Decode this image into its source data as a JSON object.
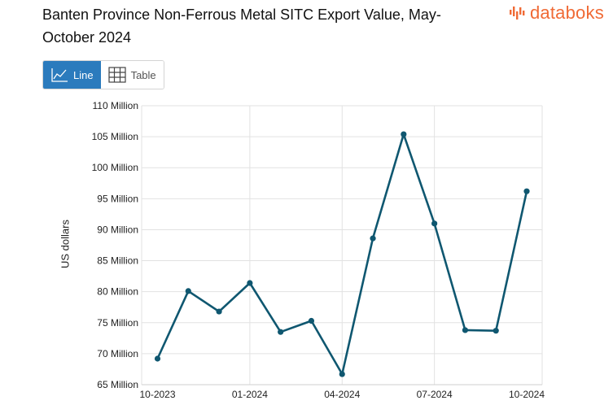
{
  "title": "Banten Province Non-Ferrous Metal SITC Export Value, May-October 2024",
  "logo": {
    "text": "databoks",
    "color": "#f06a35"
  },
  "view_toggle": {
    "line_label": "Line",
    "table_label": "Table",
    "active": "Line",
    "line_icon": "line-chart-icon",
    "table_icon": "table-grid-icon"
  },
  "chart_data": {
    "type": "line",
    "ylabel": "US dollars",
    "ylim": [
      65,
      110
    ],
    "y_ticks": [
      "65 Million",
      "70 Million",
      "75 Million",
      "80 Million",
      "85 Million",
      "90 Million",
      "95 Million",
      "100 Million",
      "105 Million",
      "110 Million"
    ],
    "y_tick_values": [
      65,
      70,
      75,
      80,
      85,
      90,
      95,
      100,
      105,
      110
    ],
    "x_tick_labels": [
      "10-2023",
      "01-2024",
      "04-2024",
      "07-2024",
      "10-2024"
    ],
    "x": [
      "10-2023",
      "11-2023",
      "12-2023",
      "01-2024",
      "02-2024",
      "03-2024",
      "04-2024",
      "05-2024",
      "06-2024",
      "07-2024",
      "08-2024",
      "09-2024",
      "10-2024"
    ],
    "series": [
      {
        "values": [
          69.2,
          80.1,
          76.8,
          81.4,
          73.5,
          75.3,
          66.7,
          88.6,
          105.4,
          91.0,
          73.8,
          73.7,
          96.2
        ]
      }
    ],
    "line_color": "#0f5770",
    "grid": true
  }
}
